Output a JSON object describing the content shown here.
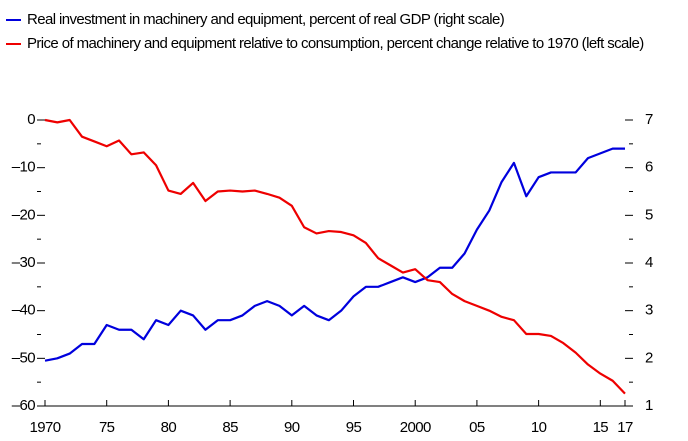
{
  "chart_data": {
    "type": "line",
    "x": [
      1970,
      1971,
      1972,
      1973,
      1974,
      1975,
      1976,
      1977,
      1978,
      1979,
      1980,
      1981,
      1982,
      1983,
      1984,
      1985,
      1986,
      1987,
      1988,
      1989,
      1990,
      1991,
      1992,
      1993,
      1994,
      1995,
      1996,
      1997,
      1998,
      1999,
      2000,
      2001,
      2002,
      2003,
      2004,
      2005,
      2006,
      2007,
      2008,
      2009,
      2010,
      2011,
      2012,
      2013,
      2014,
      2015,
      2016,
      2017
    ],
    "series": [
      {
        "name": "Real investment in machinery and equipment, percent of real GDP (right scale)",
        "color": "#0000dd",
        "axis": "y2",
        "values": [
          1.95,
          2.0,
          2.1,
          2.3,
          2.3,
          2.7,
          2.6,
          2.6,
          2.4,
          2.8,
          2.7,
          3.0,
          2.9,
          2.6,
          2.8,
          2.8,
          2.9,
          3.1,
          3.2,
          3.1,
          2.9,
          3.1,
          2.9,
          2.8,
          3.0,
          3.3,
          3.5,
          3.5,
          3.6,
          3.7,
          3.6,
          3.7,
          3.9,
          3.9,
          4.2,
          4.7,
          5.1,
          5.7,
          6.1,
          5.4,
          5.8,
          5.9,
          5.9,
          5.9,
          6.2,
          6.3,
          6.4,
          6.4
        ]
      },
      {
        "name": "Price of machinery and equipment relative to consumption, percent change relative to 1970 (left scale)",
        "color": "#ee0000",
        "values": [
          0,
          -0.5,
          0,
          -3.5,
          -4.5,
          -5.5,
          -4.3,
          -7.2,
          -6.8,
          -9.5,
          -14.8,
          -15.5,
          -13.2,
          -17,
          -15,
          -14.8,
          -15,
          -14.8,
          -15.5,
          -16.3,
          -18,
          -22.5,
          -23.8,
          -23.3,
          -23.5,
          -24.2,
          -25.8,
          -29,
          -30.5,
          -32,
          -31.3,
          -33.6,
          -34,
          -36.5,
          -38,
          -39,
          -40,
          -41.3,
          -42,
          -44.9,
          -44.9,
          -45.3,
          -46.8,
          -48.8,
          -51.3,
          -53.2,
          -54.7,
          -57.4
        ]
      }
    ],
    "xlim": [
      1970,
      2017
    ],
    "xticks": [
      1970,
      {
        "value": 1975,
        "label": "75"
      },
      {
        "value": 1980,
        "label": "80"
      },
      {
        "value": 1985,
        "label": "85"
      },
      {
        "value": 1990,
        "label": "90"
      },
      {
        "value": 1995,
        "label": "95"
      },
      2000,
      {
        "value": 2005,
        "label": "05"
      },
      {
        "value": 2010,
        "label": "10"
      },
      {
        "value": 2015,
        "label": "15"
      },
      {
        "value": 2017,
        "label": "17"
      }
    ],
    "ylim": [
      -60,
      0
    ],
    "yticks": [
      0,
      {
        "value": -10,
        "label": "–10"
      },
      {
        "value": -20,
        "label": "–20"
      },
      {
        "value": -30,
        "label": "–30"
      },
      {
        "value": -40,
        "label": "–40"
      },
      {
        "value": -50,
        "label": "–50"
      },
      {
        "value": -60,
        "label": "–60"
      }
    ],
    "y_minor_ticks": [
      -5,
      -15,
      -25,
      -35,
      -45,
      -55
    ],
    "y2lim": [
      1,
      7
    ],
    "y2ticks": [
      1,
      2,
      3,
      4,
      5,
      6,
      7
    ],
    "y2_minor_ticks": [
      1.5,
      2.5,
      3.5,
      4.5,
      5.5,
      6.5
    ]
  }
}
